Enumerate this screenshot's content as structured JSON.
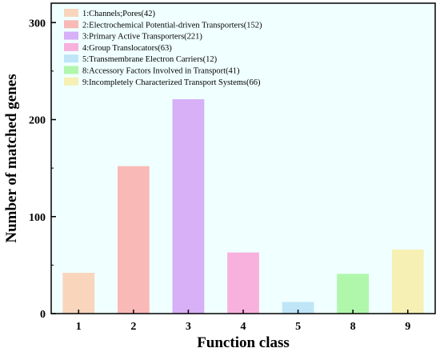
{
  "chart_data": {
    "type": "bar",
    "xlabel": "Function class",
    "ylabel": "Number of matched genes",
    "ylim": [
      0,
      320
    ],
    "yticks": [
      0,
      100,
      200,
      300
    ],
    "categories": [
      "1",
      "2",
      "3",
      "4",
      "5",
      "8",
      "9"
    ],
    "values": [
      42,
      152,
      221,
      63,
      12,
      41,
      66
    ],
    "colors": [
      "#f8d5bb",
      "#f9b9b7",
      "#d7b0f7",
      "#f8b1dd",
      "#bfe6f7",
      "#b0f7ac",
      "#f6f0b4"
    ],
    "plot_background": "#f0ffff",
    "grid": false,
    "legend_position": "top-left",
    "legend": [
      "1:Channels;Pores(42)",
      "2:Electrochemical Potential-driven Transporters(152)",
      "3:Primary Active Transporters(221)",
      "4:Group Translocators(63)",
      "5:Transmembrane Electron Carriers(12)",
      "8:Accessory Factors Involved in Transport(41)",
      "9:Incompletely Characterized Transport Systems(66)"
    ]
  }
}
